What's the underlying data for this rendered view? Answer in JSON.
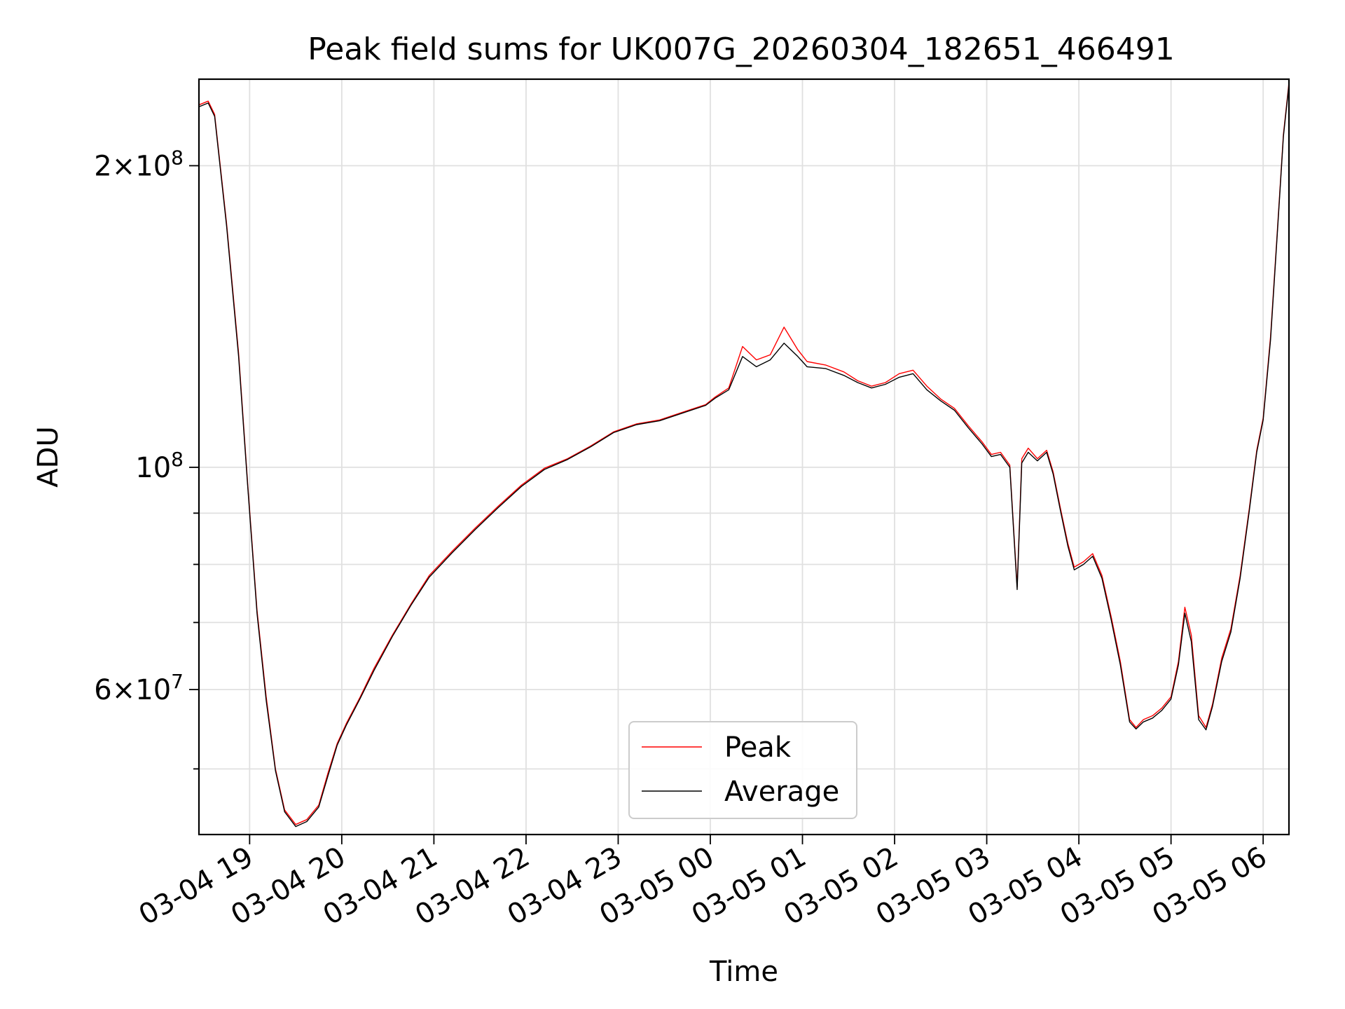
{
  "chart_data": {
    "type": "line",
    "title": "Peak field sums for UK007G_20260304_182651_466491",
    "xlabel": "Time",
    "ylabel": "ADU",
    "yscale": "log",
    "xlim": [
      18.45,
      30.28
    ],
    "ylim": [
      43000000,
      244000000
    ],
    "grid": true,
    "legend_location": "lower center",
    "x_ticks": [
      {
        "value": 19,
        "label": "03-04 19"
      },
      {
        "value": 20,
        "label": "03-04 20"
      },
      {
        "value": 21,
        "label": "03-04 21"
      },
      {
        "value": 22,
        "label": "03-04 22"
      },
      {
        "value": 23,
        "label": "03-04 23"
      },
      {
        "value": 24,
        "label": "03-05 00"
      },
      {
        "value": 25,
        "label": "03-05 01"
      },
      {
        "value": 26,
        "label": "03-05 02"
      },
      {
        "value": 27,
        "label": "03-05 03"
      },
      {
        "value": 28,
        "label": "03-05 04"
      },
      {
        "value": 29,
        "label": "03-05 05"
      },
      {
        "value": 30,
        "label": "03-05 06"
      }
    ],
    "y_major_ticks": [
      {
        "value": 60000000,
        "base": "6×10",
        "exp": "7"
      },
      {
        "value": 100000000,
        "base": "10",
        "exp": "8"
      },
      {
        "value": 200000000,
        "base": "2×10",
        "exp": "8"
      }
    ],
    "y_minor_ticks": [
      50000000,
      70000000,
      80000000,
      90000000
    ],
    "series": [
      {
        "name": "Peak",
        "color": "#ff0000",
        "x": [
          18.45,
          18.55,
          18.62,
          18.75,
          18.88,
          18.98,
          19.08,
          19.18,
          19.28,
          19.38,
          19.5,
          19.62,
          19.75,
          19.85,
          19.95,
          20.05,
          20.2,
          20.35,
          20.55,
          20.75,
          20.95,
          21.2,
          21.45,
          21.7,
          21.95,
          22.2,
          22.45,
          22.7,
          22.95,
          23.2,
          23.45,
          23.7,
          23.95,
          24.05,
          24.2,
          24.35,
          24.5,
          24.65,
          24.8,
          24.95,
          25.05,
          25.25,
          25.45,
          25.6,
          25.75,
          25.9,
          26.05,
          26.2,
          26.35,
          26.5,
          26.65,
          26.8,
          26.95,
          27.05,
          27.15,
          27.25,
          27.33,
          27.38,
          27.45,
          27.55,
          27.65,
          27.72,
          27.8,
          27.88,
          27.95,
          28.05,
          28.15,
          28.25,
          28.35,
          28.45,
          28.55,
          28.62,
          28.7,
          28.8,
          28.9,
          29.0,
          29.08,
          29.15,
          29.22,
          29.3,
          29.38,
          29.45,
          29.55,
          29.65,
          29.75,
          29.85,
          29.93,
          30.0,
          30.08,
          30.15,
          30.22,
          30.28
        ],
        "y": [
          230000000,
          232000000,
          225000000,
          175000000,
          130000000,
          96000000,
          72000000,
          59000000,
          50000000,
          45500000,
          44000000,
          44500000,
          46000000,
          49500000,
          53000000,
          55500000,
          59000000,
          63000000,
          68000000,
          73000000,
          78000000,
          82500000,
          87000000,
          91500000,
          96000000,
          99800000,
          102000000,
          105000000,
          108500000,
          110500000,
          111500000,
          113500000,
          115500000,
          117500000,
          120000000,
          132000000,
          128000000,
          129500000,
          138000000,
          131000000,
          127500000,
          126500000,
          124500000,
          122000000,
          120500000,
          121500000,
          124000000,
          125000000,
          120500000,
          117000000,
          114500000,
          110000000,
          106000000,
          103000000,
          103500000,
          100500000,
          76000000,
          102000000,
          104500000,
          102000000,
          104000000,
          99000000,
          91000000,
          84000000,
          79500000,
          80500000,
          82000000,
          78000000,
          71000000,
          64000000,
          56000000,
          55000000,
          56000000,
          56500000,
          57500000,
          59000000,
          64000000,
          72500000,
          68000000,
          56500000,
          55000000,
          58000000,
          64500000,
          69000000,
          78000000,
          91000000,
          104000000,
          112000000,
          135000000,
          170000000,
          215000000,
          242000000
        ]
      },
      {
        "name": "Average",
        "color": "#000000",
        "x": [
          18.45,
          18.55,
          18.62,
          18.75,
          18.88,
          18.98,
          19.08,
          19.18,
          19.28,
          19.38,
          19.5,
          19.62,
          19.75,
          19.85,
          19.95,
          20.05,
          20.2,
          20.35,
          20.55,
          20.75,
          20.95,
          21.2,
          21.45,
          21.7,
          21.95,
          22.2,
          22.45,
          22.7,
          22.95,
          23.2,
          23.45,
          23.7,
          23.95,
          24.05,
          24.2,
          24.35,
          24.5,
          24.65,
          24.8,
          24.95,
          25.05,
          25.25,
          25.45,
          25.6,
          25.75,
          25.9,
          26.05,
          26.2,
          26.35,
          26.5,
          26.65,
          26.8,
          26.95,
          27.05,
          27.15,
          27.25,
          27.33,
          27.38,
          27.45,
          27.55,
          27.65,
          27.72,
          27.8,
          27.88,
          27.95,
          28.05,
          28.15,
          28.25,
          28.35,
          28.45,
          28.55,
          28.62,
          28.7,
          28.8,
          28.9,
          29.0,
          29.08,
          29.15,
          29.22,
          29.3,
          29.38,
          29.45,
          29.55,
          29.65,
          29.75,
          29.85,
          29.93,
          30.0,
          30.08,
          30.15,
          30.22,
          30.28
        ],
        "y": [
          229000000,
          231000000,
          224000000,
          174000000,
          129000000,
          95500000,
          71500000,
          58500000,
          49800000,
          45300000,
          43800000,
          44300000,
          45800000,
          49200000,
          52800000,
          55300000,
          58800000,
          62700000,
          67800000,
          72800000,
          77700000,
          82200000,
          86700000,
          91200000,
          95700000,
          99500000,
          101800000,
          104800000,
          108300000,
          110300000,
          111300000,
          113300000,
          115300000,
          117200000,
          119500000,
          129000000,
          126000000,
          128000000,
          133000000,
          129000000,
          126000000,
          125500000,
          123500000,
          121500000,
          120000000,
          121000000,
          123000000,
          124000000,
          119500000,
          116500000,
          114000000,
          109500000,
          105500000,
          102500000,
          103000000,
          100000000,
          75500000,
          101000000,
          103500000,
          101500000,
          103500000,
          98500000,
          90500000,
          83500000,
          79000000,
          80000000,
          81500000,
          77500000,
          70500000,
          63500000,
          55700000,
          54800000,
          55700000,
          56200000,
          57200000,
          58700000,
          63500000,
          71500000,
          67000000,
          56000000,
          54700000,
          57700000,
          64000000,
          68500000,
          77500000,
          90500000,
          103500000,
          111500000,
          134000000,
          169000000,
          214000000,
          241000000
        ]
      }
    ]
  }
}
